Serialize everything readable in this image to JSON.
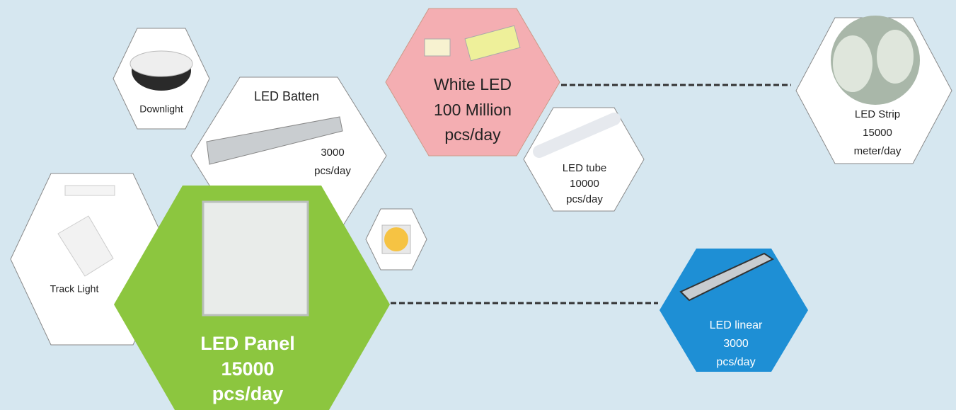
{
  "nodes": [
    {
      "lines": [
        "Downlight"
      ]
    },
    {
      "lines": [
        "LED Batten",
        "3000",
        "pcs/day"
      ]
    },
    {
      "lines": [
        "Track Light"
      ]
    },
    {
      "lines": [
        "LED Panel",
        "15000",
        "pcs/day"
      ]
    },
    {
      "lines": [
        "White LED",
        "100 Million",
        "pcs/day"
      ]
    },
    {
      "lines": [
        "LED tube",
        "10000",
        "pcs/day"
      ]
    },
    {
      "lines": [
        "LED Strip",
        "15000",
        "meter/day"
      ]
    },
    {
      "lines": [
        "LED linear",
        "3000",
        "pcs/day"
      ]
    }
  ]
}
